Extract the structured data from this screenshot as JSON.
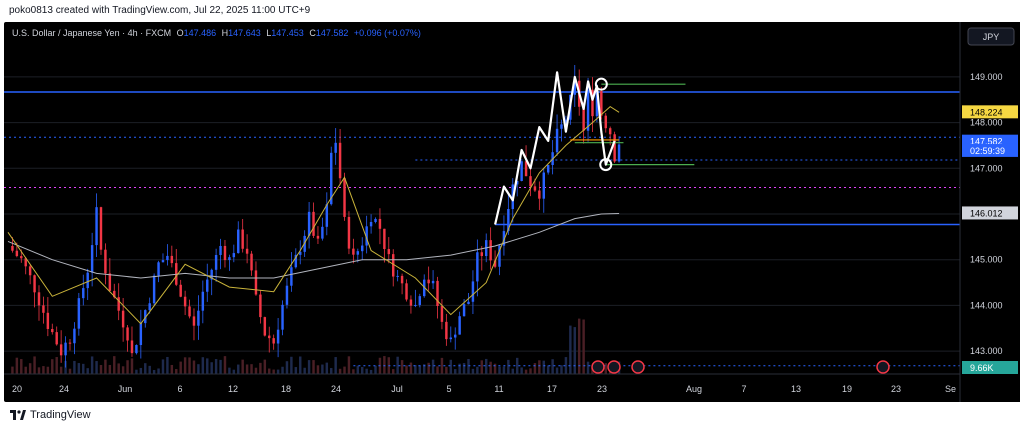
{
  "header": {
    "attribution": "poko0813 created with TradingView.com, Jul 22, 2025 11:00 UTC+9"
  },
  "legend": {
    "symbol": "U.S. Dollar / Japanese Yen · 4h · FXCM",
    "o_label": "O",
    "o_value": "147.486",
    "h_label": "H",
    "h_value": "147.643",
    "l_label": "L",
    "l_value": "147.453",
    "c_label": "C",
    "c_value": "147.582",
    "change": "+0.096 (+0.07%)"
  },
  "currency_button": "JPY",
  "price_axis": {
    "ticks": [
      "149.000",
      "148.000",
      "147.000",
      "146.000",
      "145.000",
      "144.000",
      "143.000"
    ],
    "tick_values": [
      149.0,
      148.0,
      147.0,
      146.0,
      145.0,
      144.0,
      143.0
    ],
    "badges": [
      {
        "label": "148.224",
        "value": 148.224,
        "color": "#f5d742",
        "text_color": "#000000"
      },
      {
        "label": "147.582",
        "value": 147.582,
        "color": "#2962ff",
        "text_color": "#ffffff"
      },
      {
        "label": "02:59:39",
        "value": 147.38,
        "color": "#2962ff",
        "text_color": "#ffffff"
      },
      {
        "label": "146.012",
        "value": 146.012,
        "color": "#d1d4dc",
        "text_color": "#000000"
      }
    ],
    "volume_badge": "9.66K"
  },
  "time_axis": {
    "labels": [
      "20",
      "24",
      "Jun",
      "6",
      "12",
      "18",
      "24",
      "Jul",
      "5",
      "11",
      "17",
      "23",
      "Aug",
      "7",
      "13",
      "19",
      "23",
      "Se"
    ]
  },
  "footer": {
    "brand": "TradingView"
  },
  "colors": {
    "bull": "#2962ff",
    "bear": "#f23645",
    "ma_fast": "#c9b33a",
    "ma_slow": "#b2b5be",
    "horizontal_blue": "#2962ff",
    "green_level": "#4caf50",
    "orange_level": "#ff9800",
    "dotted_pink": "#e040fb"
  },
  "chart_data": {
    "type": "candlestick",
    "symbol": "USDJPY",
    "timeframe": "4h",
    "ylim": [
      142.5,
      150.2
    ],
    "close_path": [
      [
        0,
        145.3
      ],
      [
        3,
        145.0
      ],
      [
        6,
        144.4
      ],
      [
        9,
        143.6
      ],
      [
        12,
        143.0
      ],
      [
        14,
        143.3
      ],
      [
        16,
        144.0
      ],
      [
        18,
        144.8
      ],
      [
        20,
        146.0
      ],
      [
        21,
        145.2
      ],
      [
        23,
        144.4
      ],
      [
        25,
        143.9
      ],
      [
        27,
        143.4
      ],
      [
        28,
        142.9
      ],
      [
        30,
        143.6
      ],
      [
        32,
        144.2
      ],
      [
        34,
        144.9
      ],
      [
        36,
        145.1
      ],
      [
        38,
        144.6
      ],
      [
        40,
        144.0
      ],
      [
        42,
        143.5
      ],
      [
        44,
        144.3
      ],
      [
        46,
        144.8
      ],
      [
        48,
        145.3
      ],
      [
        50,
        145.0
      ],
      [
        52,
        145.5
      ],
      [
        54,
        145.2
      ],
      [
        56,
        144.1
      ],
      [
        58,
        143.4
      ],
      [
        60,
        143.2
      ],
      [
        62,
        144.0
      ],
      [
        64,
        144.7
      ],
      [
        66,
        145.3
      ],
      [
        68,
        145.9
      ],
      [
        70,
        145.3
      ],
      [
        72,
        146.1
      ],
      [
        73,
        147.3
      ],
      [
        74,
        147.6
      ],
      [
        75,
        146.8
      ],
      [
        76,
        145.8
      ],
      [
        78,
        145.0
      ],
      [
        80,
        145.4
      ],
      [
        82,
        146.0
      ],
      [
        84,
        145.7
      ],
      [
        86,
        145.0
      ],
      [
        88,
        144.6
      ],
      [
        90,
        144.3
      ],
      [
        92,
        144.0
      ],
      [
        94,
        144.7
      ],
      [
        96,
        144.4
      ],
      [
        98,
        143.6
      ],
      [
        100,
        143.2
      ],
      [
        102,
        143.8
      ],
      [
        104,
        144.1
      ],
      [
        106,
        145.0
      ],
      [
        108,
        145.3
      ],
      [
        110,
        144.9
      ],
      [
        112,
        145.8
      ],
      [
        114,
        146.6
      ],
      [
        116,
        147.1
      ],
      [
        118,
        146.7
      ],
      [
        120,
        146.5
      ],
      [
        122,
        147.0
      ],
      [
        124,
        147.7
      ],
      [
        126,
        148.1
      ],
      [
        128,
        148.8
      ],
      [
        129,
        148.4
      ],
      [
        130,
        147.8
      ],
      [
        131,
        148.6
      ],
      [
        132,
        148.3
      ],
      [
        133,
        148.7
      ],
      [
        134,
        148.2
      ],
      [
        136,
        147.8
      ],
      [
        137,
        147.3
      ],
      [
        138,
        147.582
      ]
    ],
    "ma_fast": [
      [
        0,
        145.6
      ],
      [
        10,
        144.2
      ],
      [
        20,
        144.6
      ],
      [
        30,
        143.6
      ],
      [
        40,
        144.9
      ],
      [
        50,
        144.4
      ],
      [
        60,
        144.3
      ],
      [
        66,
        145.2
      ],
      [
        72,
        146.2
      ],
      [
        76,
        146.8
      ],
      [
        82,
        145.2
      ],
      [
        92,
        144.6
      ],
      [
        100,
        143.8
      ],
      [
        108,
        144.5
      ],
      [
        114,
        145.9
      ],
      [
        120,
        146.9
      ],
      [
        126,
        147.5
      ],
      [
        132,
        148.0
      ],
      [
        136,
        148.35
      ],
      [
        138,
        148.224
      ]
    ],
    "ma_slow": [
      [
        0,
        145.4
      ],
      [
        10,
        145.0
      ],
      [
        20,
        144.7
      ],
      [
        30,
        144.6
      ],
      [
        40,
        144.7
      ],
      [
        50,
        144.6
      ],
      [
        60,
        144.6
      ],
      [
        70,
        144.8
      ],
      [
        80,
        145.0
      ],
      [
        90,
        145.0
      ],
      [
        100,
        145.1
      ],
      [
        110,
        145.3
      ],
      [
        120,
        145.6
      ],
      [
        128,
        145.9
      ],
      [
        134,
        146.0
      ],
      [
        138,
        146.012
      ]
    ],
    "levels": [
      {
        "name": "resistance-line",
        "price": 148.67,
        "style": "solid",
        "color": "#2962ff"
      },
      {
        "name": "support-line",
        "price": 145.77,
        "style": "solid",
        "color": "#2962ff"
      },
      {
        "name": "dotted-upper",
        "price": 147.68,
        "style": "dotted",
        "color": "#2962ff"
      },
      {
        "name": "dotted-mid",
        "price": 147.18,
        "style": "dotted",
        "color": "#2962ff"
      },
      {
        "name": "dotted-pink",
        "price": 146.58,
        "style": "dotted",
        "color": "#e040fb"
      },
      {
        "name": "dotted-low",
        "price": 142.68,
        "style": "dotted",
        "color": "#2962ff"
      }
    ],
    "annotations": {
      "zigzag": [
        [
          110,
          145.77
        ],
        [
          112,
          146.6
        ],
        [
          114,
          146.3
        ],
        [
          116,
          147.4
        ],
        [
          118,
          147.0
        ],
        [
          120,
          147.9
        ],
        [
          122,
          147.6
        ],
        [
          124,
          149.1
        ],
        [
          126,
          147.8
        ],
        [
          128,
          149.0
        ],
        [
          130,
          148.3
        ],
        [
          131,
          148.9
        ],
        [
          132,
          148.5
        ],
        [
          133,
          148.8
        ],
        [
          134,
          147.8
        ],
        [
          135,
          147.08
        ],
        [
          137,
          147.6
        ]
      ],
      "circles": [
        [
          134,
          148.84
        ],
        [
          135,
          147.08
        ]
      ],
      "green_lines": [
        {
          "x0": 134,
          "x1": 153,
          "price": 148.84
        },
        {
          "x0": 135,
          "x1": 155,
          "price": 147.08
        },
        {
          "x0": 128,
          "x1": 139,
          "price": 147.56
        }
      ],
      "orange_line": {
        "x0": 127,
        "x1": 138,
        "price": 147.62
      }
    }
  }
}
